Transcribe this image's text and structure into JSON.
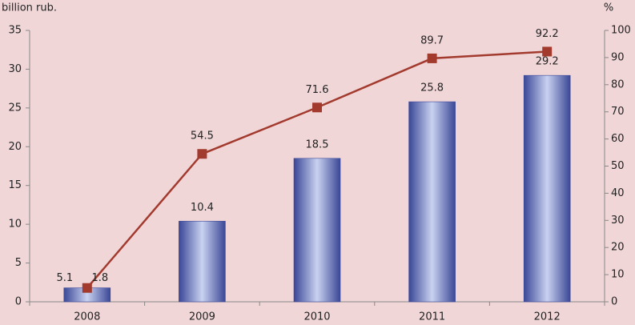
{
  "chart_data": {
    "type": "bar",
    "y_label": "billion rub.",
    "y2_label": "%",
    "categories": [
      "2008",
      "2009",
      "2010",
      "2011",
      "2012"
    ],
    "series": [
      {
        "type": "bar",
        "color": "#3c4a9c",
        "values": [
          1.8,
          10.4,
          18.5,
          25.8,
          29.2
        ]
      },
      {
        "type": "line",
        "axis": "y2",
        "color": "#a23a2e",
        "values": [
          5.1,
          54.5,
          71.6,
          89.7,
          92.2
        ]
      }
    ],
    "ylim": [
      0,
      35
    ],
    "yticks": [
      0,
      5,
      10,
      15,
      20,
      25,
      30,
      35
    ],
    "y2lim": [
      0,
      100
    ],
    "y2ticks": [
      0,
      10,
      20,
      30,
      40,
      50,
      60,
      70,
      80,
      90,
      100
    ]
  }
}
